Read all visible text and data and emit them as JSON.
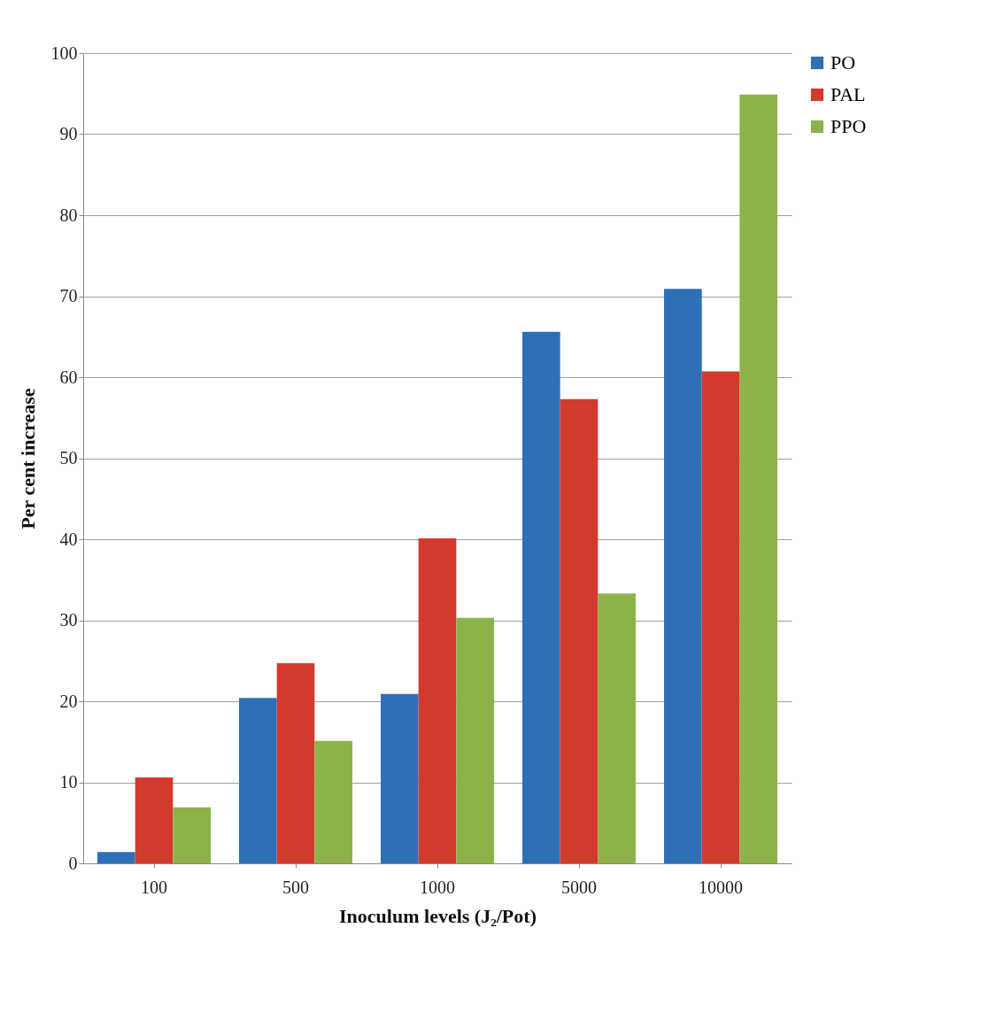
{
  "chart_data": {
    "type": "bar",
    "xlabel": "Inoculum levels (J₂/Pot)",
    "ylabel": "Per cent increase",
    "categories": [
      "100",
      "500",
      "1000",
      "5000",
      "10000"
    ],
    "series": [
      {
        "name": "PO",
        "color": "#2e6fb7",
        "values": [
          1.4,
          20.4,
          20.9,
          65.6,
          70.9
        ]
      },
      {
        "name": "PAL",
        "color": "#d23a2e",
        "values": [
          10.6,
          24.7,
          40.1,
          57.3,
          60.7
        ]
      },
      {
        "name": "PPO",
        "color": "#8db24a",
        "values": [
          6.9,
          15.1,
          30.3,
          33.3,
          94.9
        ]
      }
    ],
    "ylim": [
      0,
      100
    ],
    "yticks": [
      0,
      10,
      20,
      30,
      40,
      50,
      60,
      70,
      80,
      90,
      100
    ],
    "grid": "y",
    "legend": "right"
  }
}
